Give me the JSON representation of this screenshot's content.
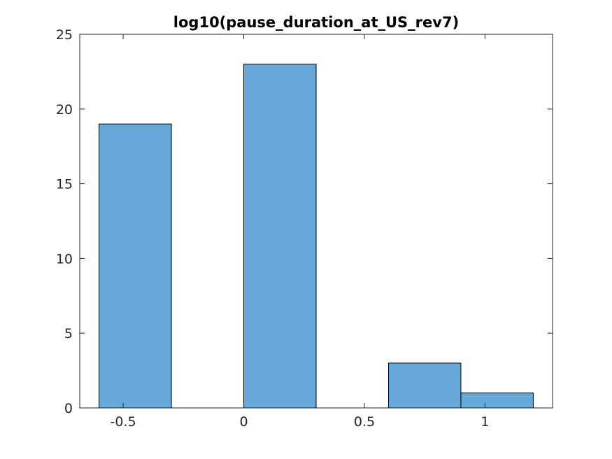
{
  "chart_data": {
    "type": "bar",
    "title": "log10(pause_duration_at_US_rev7)",
    "xlabel": "",
    "ylabel": "",
    "xlim": [
      -0.68,
      1.28
    ],
    "ylim": [
      0,
      25
    ],
    "xticks": [
      -0.5,
      0,
      0.5,
      1
    ],
    "xtick_labels": [
      "-0.5",
      "0",
      "0.5",
      "1"
    ],
    "yticks": [
      0,
      5,
      10,
      15,
      20,
      25
    ],
    "ytick_labels": [
      "0",
      "5",
      "10",
      "15",
      "20",
      "25"
    ],
    "bins": [
      {
        "x0": -0.6,
        "x1": -0.3,
        "count": 19
      },
      {
        "x0": 0.0,
        "x1": 0.3,
        "count": 23
      },
      {
        "x0": 0.6,
        "x1": 0.9,
        "count": 3
      },
      {
        "x0": 0.9,
        "x1": 1.2,
        "count": 1
      }
    ],
    "bar_color": "#66a9d8",
    "edge_color": "#000000",
    "grid": false,
    "box": true
  }
}
